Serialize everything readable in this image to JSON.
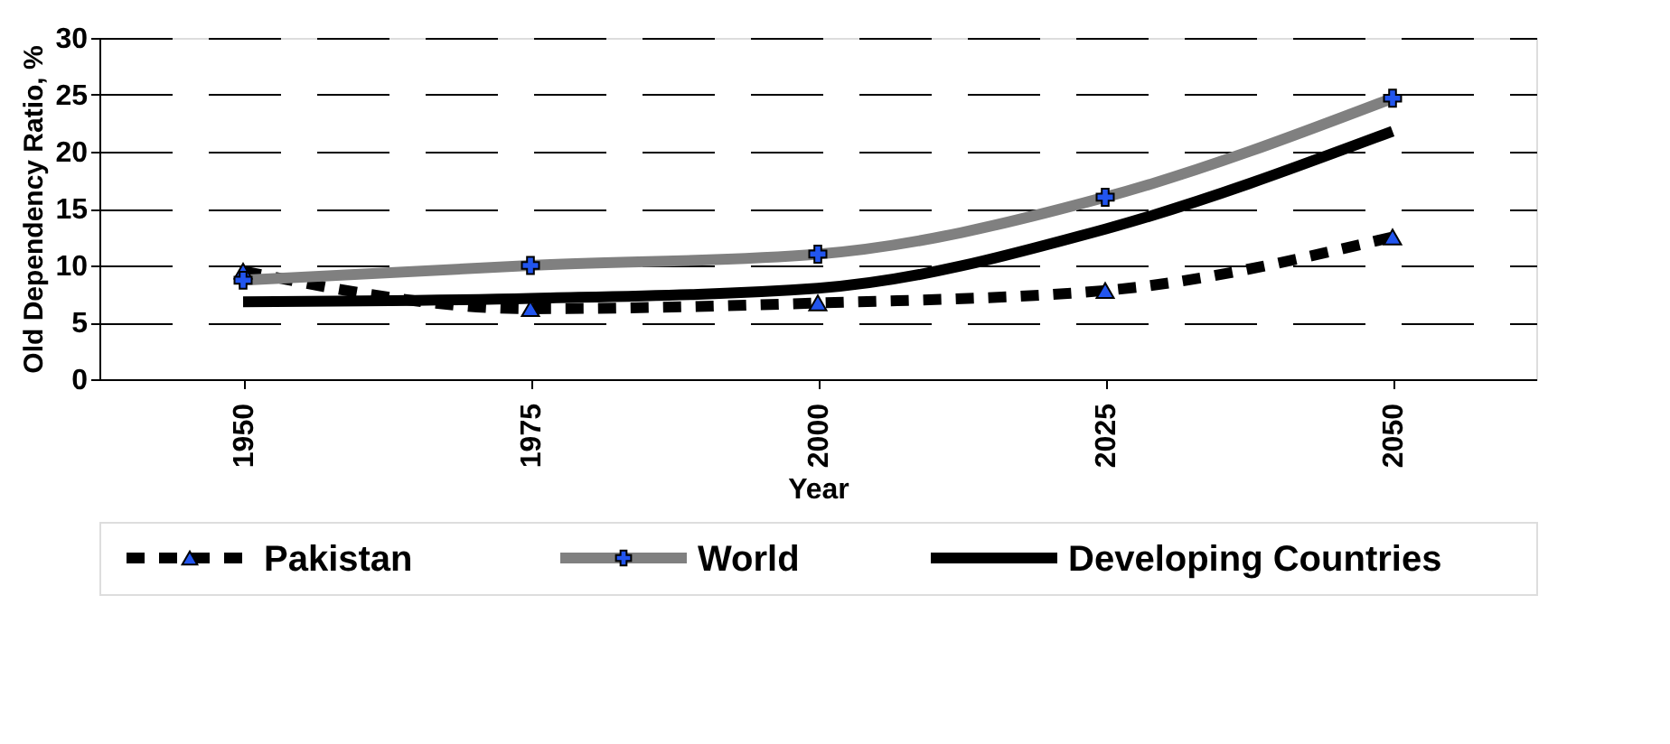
{
  "chart_data": {
    "type": "line",
    "xlabel": "Year",
    "ylabel": "Old Dependency Ratio, %",
    "categories": [
      "1950",
      "1975",
      "2000",
      "2025",
      "2050"
    ],
    "series": [
      {
        "name": "Pakistan",
        "color": "#000000",
        "line_style": "dashed",
        "marker": "triangle",
        "values": [
          9.5,
          6.2,
          6.7,
          7.8,
          12.5
        ]
      },
      {
        "name": "World",
        "color": "#808080",
        "line_style": "solid",
        "marker": "cross",
        "values": [
          8.7,
          10,
          11,
          16,
          24.7
        ]
      },
      {
        "name": "Developing Countries",
        "color": "#000000",
        "line_style": "solid",
        "marker": "none",
        "values": [
          6.8,
          7.1,
          8,
          13.2,
          21.8
        ]
      }
    ],
    "ylim": [
      0,
      30
    ],
    "yticks": [
      0,
      5,
      10,
      15,
      20,
      25,
      30
    ],
    "grid": "y",
    "legend": "bottom"
  }
}
